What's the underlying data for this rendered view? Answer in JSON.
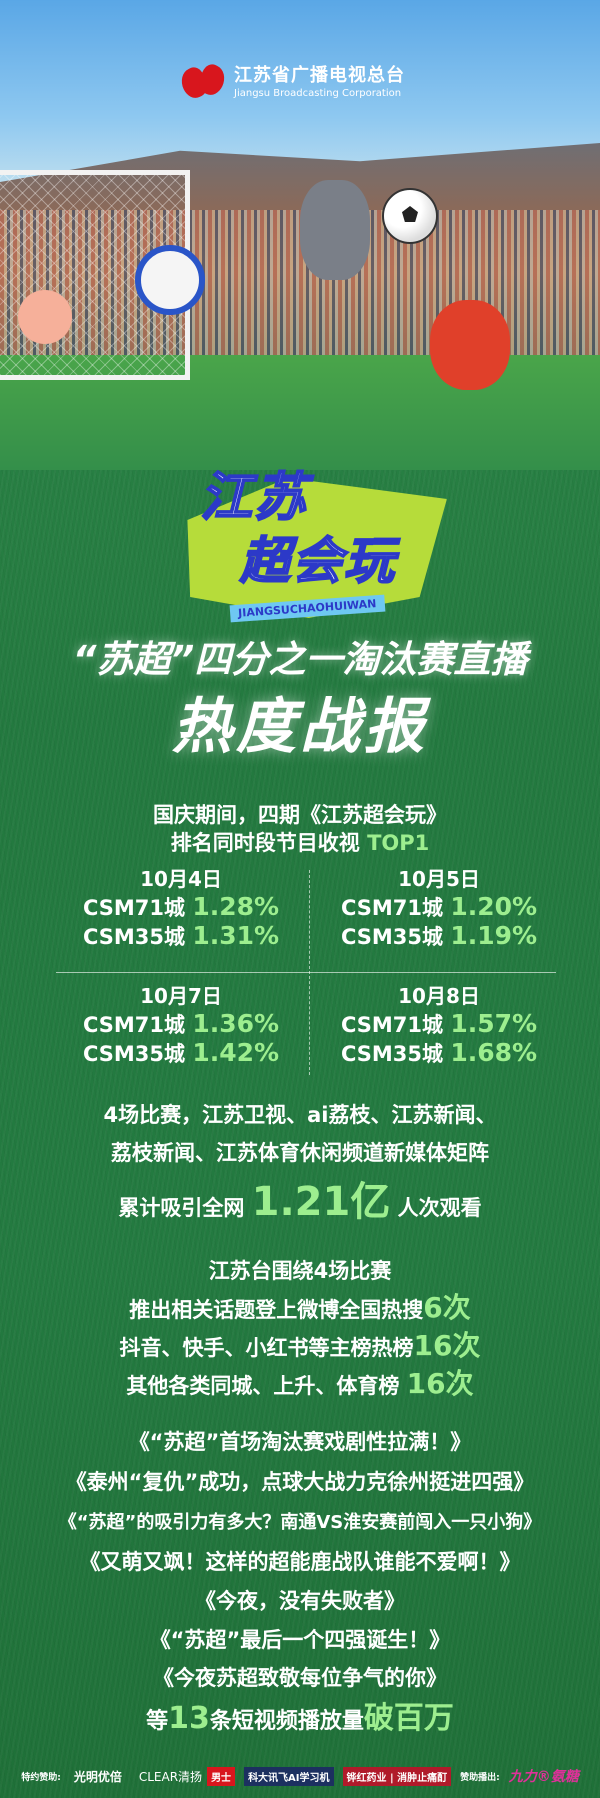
{
  "brand": {
    "cn": "江苏省广播电视总台",
    "en": "Jiangsu Broadcasting Corporation"
  },
  "show_logo": {
    "cn_line1": "江苏",
    "cn_line2": "超会玩",
    "en": "JIANGSUCHAOHUIWAN"
  },
  "headline": {
    "line1": "“苏超”四分之一淘汰赛直播",
    "line2": "热度战报"
  },
  "intro": {
    "line1": "国庆期间，四期《江苏超会玩》",
    "line2_prefix": "排名同时段节目收视 ",
    "line2_highlight": "TOP1"
  },
  "ratings": [
    {
      "date": "10月4日",
      "rows": [
        {
          "label": "CSM71城 ",
          "value": "1.28%"
        },
        {
          "label": "CSM35城 ",
          "value": "1.31%"
        }
      ]
    },
    {
      "date": "10月5日",
      "rows": [
        {
          "label": "CSM71城 ",
          "value": "1.20%"
        },
        {
          "label": "CSM35城 ",
          "value": "1.19%"
        }
      ]
    },
    {
      "date": "10月7日",
      "rows": [
        {
          "label": "CSM71城 ",
          "value": "1.36%"
        },
        {
          "label": "CSM35城 ",
          "value": "1.42%"
        }
      ]
    },
    {
      "date": "10月8日",
      "rows": [
        {
          "label": "CSM71城 ",
          "value": "1.57%"
        },
        {
          "label": "CSM35城 ",
          "value": "1.68%"
        }
      ]
    }
  ],
  "reach": {
    "line1": "4场比赛，江苏卫视、ai荔枝、江苏新闻、",
    "line2": "荔枝新闻、江苏体育休闲频道新媒体矩阵",
    "line3_prefix": "累计吸引全网 ",
    "line3_value": "1.21亿",
    "line3_suffix": " 人次观看"
  },
  "hot": {
    "title": "江苏台围绕4场比赛",
    "items": [
      {
        "text": "推出相关话题登上微博全国热搜",
        "value": "6次"
      },
      {
        "text": "抖音、快手、小红书等主榜热榜",
        "value": "16次"
      },
      {
        "text": "其他各类同城、上升、体育榜 ",
        "value": "16次"
      }
    ]
  },
  "videos": [
    "《“苏超”首场淘汰赛戏剧性拉满！》",
    "《泰州“复仇”成功，点球大战力克徐州挺进四强》",
    "《“苏超”的吸引力有多大？南通VS淮安赛前闯入一只小狗》",
    "《又萌又飒！这样的超能鹿战队谁能不爱啊！》",
    "《今夜，没有失败者》",
    "《“苏超”最后一个四强诞生！》",
    "《今夜苏超致敬每位争气的你》"
  ],
  "summary": {
    "prefix": "等",
    "count": "13",
    "middle": "条短视频播放量",
    "highlight": "破百万"
  },
  "sponsors": {
    "special_label": "特约赞助:",
    "items": [
      "光明优倍",
      "CLEAR清扬",
      "男士",
      "科大讯飞AI学习机",
      "铧红药业",
      "消肿止痛酊"
    ],
    "broadcast_label": "赞助播出:",
    "broadcast": "九力®氨糖"
  },
  "colors": {
    "highlight": "#9dee8f",
    "grass": "#237a40",
    "brand_red": "#d8161d"
  }
}
